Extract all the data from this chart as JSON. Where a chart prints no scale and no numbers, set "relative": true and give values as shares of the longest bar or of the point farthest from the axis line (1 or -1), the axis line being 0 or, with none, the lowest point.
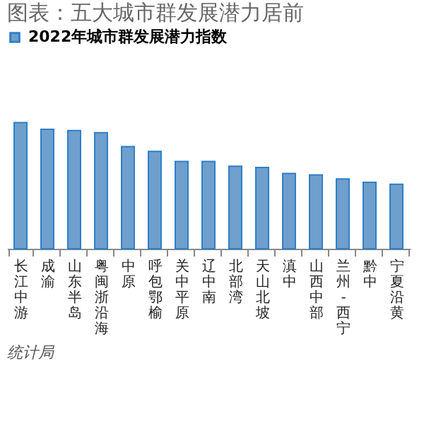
{
  "chart_data": {
    "type": "bar",
    "title": "图表：五大城市群发展潜力居前",
    "relative": true,
    "legend": "top",
    "categories": [
      "长江中游",
      "成渝",
      "山东半岛",
      "粤闽浙沿海",
      "中原",
      "呼包鄂榆",
      "关中平原",
      "辽中南",
      "北部湾",
      "天山北坡",
      "滇中",
      "山西中部",
      "兰州-西宁",
      "黔中",
      "宁夏沿黄"
    ],
    "series": [
      {
        "name": "2022年城市群发展潜力指数",
        "color": "#6f9fcc",
        "values": [
          1,
          0.947,
          0.936,
          0.92,
          0.809,
          0.771,
          0.691,
          0.691,
          0.654,
          0.644,
          0.596,
          0.585,
          0.553,
          0.527,
          0.511
        ]
      }
    ],
    "annotations": [
      "统计局"
    ]
  }
}
